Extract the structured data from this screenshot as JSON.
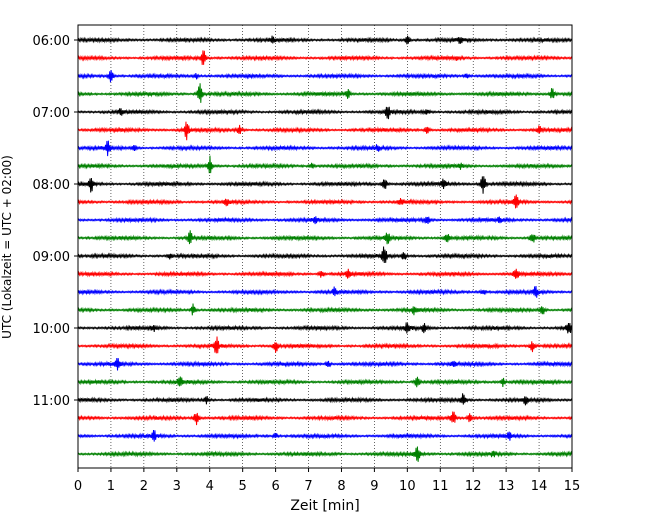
{
  "chart_data": {
    "type": "line",
    "title": "",
    "xlabel": "Zeit  [min]",
    "ylabel": "UTC (Lokalzeit = UTC + 02:00)",
    "xlim": [
      0,
      15
    ],
    "x_ticks": [
      0,
      1,
      2,
      3,
      4,
      5,
      6,
      7,
      8,
      9,
      10,
      11,
      12,
      13,
      14,
      15
    ],
    "x_tick_labels": [
      "0",
      "1",
      "2",
      "3",
      "4",
      "5",
      "6",
      "7",
      "8",
      "9",
      "10",
      "11",
      "12",
      "13",
      "14",
      "15"
    ],
    "y_ticks": [
      {
        "label": "06:00",
        "row": 0
      },
      {
        "label": "07:00",
        "row": 4
      },
      {
        "label": "08:00",
        "row": 8
      },
      {
        "label": "09:00",
        "row": 12
      },
      {
        "label": "10:00",
        "row": 16
      },
      {
        "label": "11:00",
        "row": 20
      }
    ],
    "grid": "vertical dotted",
    "trace_minutes": 15,
    "color_cycle": [
      "#000000",
      "#ff0000",
      "#0000ff",
      "#008000"
    ],
    "series": [
      {
        "start": "06:00",
        "events": [
          [
            5.9,
            0.25
          ],
          [
            10.0,
            0.35
          ],
          [
            11.6,
            0.25
          ]
        ]
      },
      {
        "start": "06:15",
        "events": [
          [
            3.8,
            0.8
          ],
          [
            11.5,
            0.15
          ]
        ]
      },
      {
        "start": "06:30",
        "events": [
          [
            1.0,
            0.45
          ],
          [
            3.6,
            0.2
          ],
          [
            11.8,
            0.2
          ]
        ]
      },
      {
        "start": "06:45",
        "events": [
          [
            3.7,
            0.8
          ],
          [
            8.2,
            0.35
          ],
          [
            14.4,
            0.45
          ]
        ]
      },
      {
        "start": "07:00",
        "events": [
          [
            1.3,
            0.3
          ],
          [
            9.4,
            0.55
          ],
          [
            10.6,
            0.2
          ]
        ]
      },
      {
        "start": "07:15",
        "events": [
          [
            3.3,
            0.7
          ],
          [
            4.9,
            0.35
          ],
          [
            10.6,
            0.25
          ],
          [
            14.0,
            0.3
          ]
        ]
      },
      {
        "start": "07:30",
        "events": [
          [
            0.9,
            0.5
          ],
          [
            1.7,
            0.25
          ],
          [
            9.1,
            0.25
          ]
        ]
      },
      {
        "start": "07:45",
        "events": [
          [
            4.0,
            0.75
          ],
          [
            7.1,
            0.2
          ],
          [
            11.6,
            0.2
          ]
        ]
      },
      {
        "start": "08:00",
        "events": [
          [
            0.4,
            0.6
          ],
          [
            9.3,
            0.55
          ],
          [
            11.1,
            0.35
          ],
          [
            12.3,
            0.9
          ]
        ]
      },
      {
        "start": "08:15",
        "events": [
          [
            4.5,
            0.3
          ],
          [
            9.8,
            0.3
          ],
          [
            13.3,
            0.55
          ]
        ]
      },
      {
        "start": "08:30",
        "events": [
          [
            7.2,
            0.25
          ],
          [
            10.6,
            0.35
          ],
          [
            12.8,
            0.2
          ]
        ]
      },
      {
        "start": "08:45",
        "events": [
          [
            3.4,
            0.55
          ],
          [
            9.4,
            0.45
          ],
          [
            11.2,
            0.4
          ],
          [
            13.8,
            0.45
          ]
        ]
      },
      {
        "start": "09:00",
        "events": [
          [
            2.8,
            0.25
          ],
          [
            9.3,
            0.75
          ],
          [
            9.9,
            0.35
          ]
        ]
      },
      {
        "start": "09:15",
        "events": [
          [
            7.4,
            0.3
          ],
          [
            8.2,
            0.3
          ],
          [
            13.3,
            0.6
          ]
        ]
      },
      {
        "start": "09:30",
        "events": [
          [
            7.8,
            0.35
          ],
          [
            12.3,
            0.2
          ],
          [
            13.9,
            0.45
          ]
        ]
      },
      {
        "start": "09:45",
        "events": [
          [
            3.5,
            0.45
          ],
          [
            10.2,
            0.35
          ],
          [
            14.1,
            0.45
          ]
        ]
      },
      {
        "start": "10:00",
        "events": [
          [
            2.3,
            0.25
          ],
          [
            10.0,
            0.5
          ],
          [
            10.5,
            0.35
          ],
          [
            14.9,
            0.6
          ]
        ]
      },
      {
        "start": "10:15",
        "events": [
          [
            4.2,
            0.75
          ],
          [
            6.0,
            0.5
          ],
          [
            13.8,
            0.45
          ]
        ]
      },
      {
        "start": "10:30",
        "events": [
          [
            1.2,
            0.45
          ],
          [
            7.6,
            0.2
          ],
          [
            11.4,
            0.2
          ]
        ]
      },
      {
        "start": "10:45",
        "events": [
          [
            3.1,
            0.55
          ],
          [
            10.3,
            0.55
          ],
          [
            12.9,
            0.35
          ]
        ]
      },
      {
        "start": "11:00",
        "events": [
          [
            3.9,
            0.3
          ],
          [
            11.7,
            0.55
          ],
          [
            13.6,
            0.4
          ]
        ]
      },
      {
        "start": "11:15",
        "events": [
          [
            3.6,
            0.6
          ],
          [
            11.4,
            0.55
          ],
          [
            11.9,
            0.4
          ]
        ]
      },
      {
        "start": "11:30",
        "events": [
          [
            2.3,
            0.55
          ],
          [
            6.0,
            0.2
          ],
          [
            13.1,
            0.3
          ]
        ]
      },
      {
        "start": "11:45",
        "events": [
          [
            10.3,
            0.75
          ],
          [
            12.6,
            0.2
          ]
        ]
      }
    ]
  }
}
